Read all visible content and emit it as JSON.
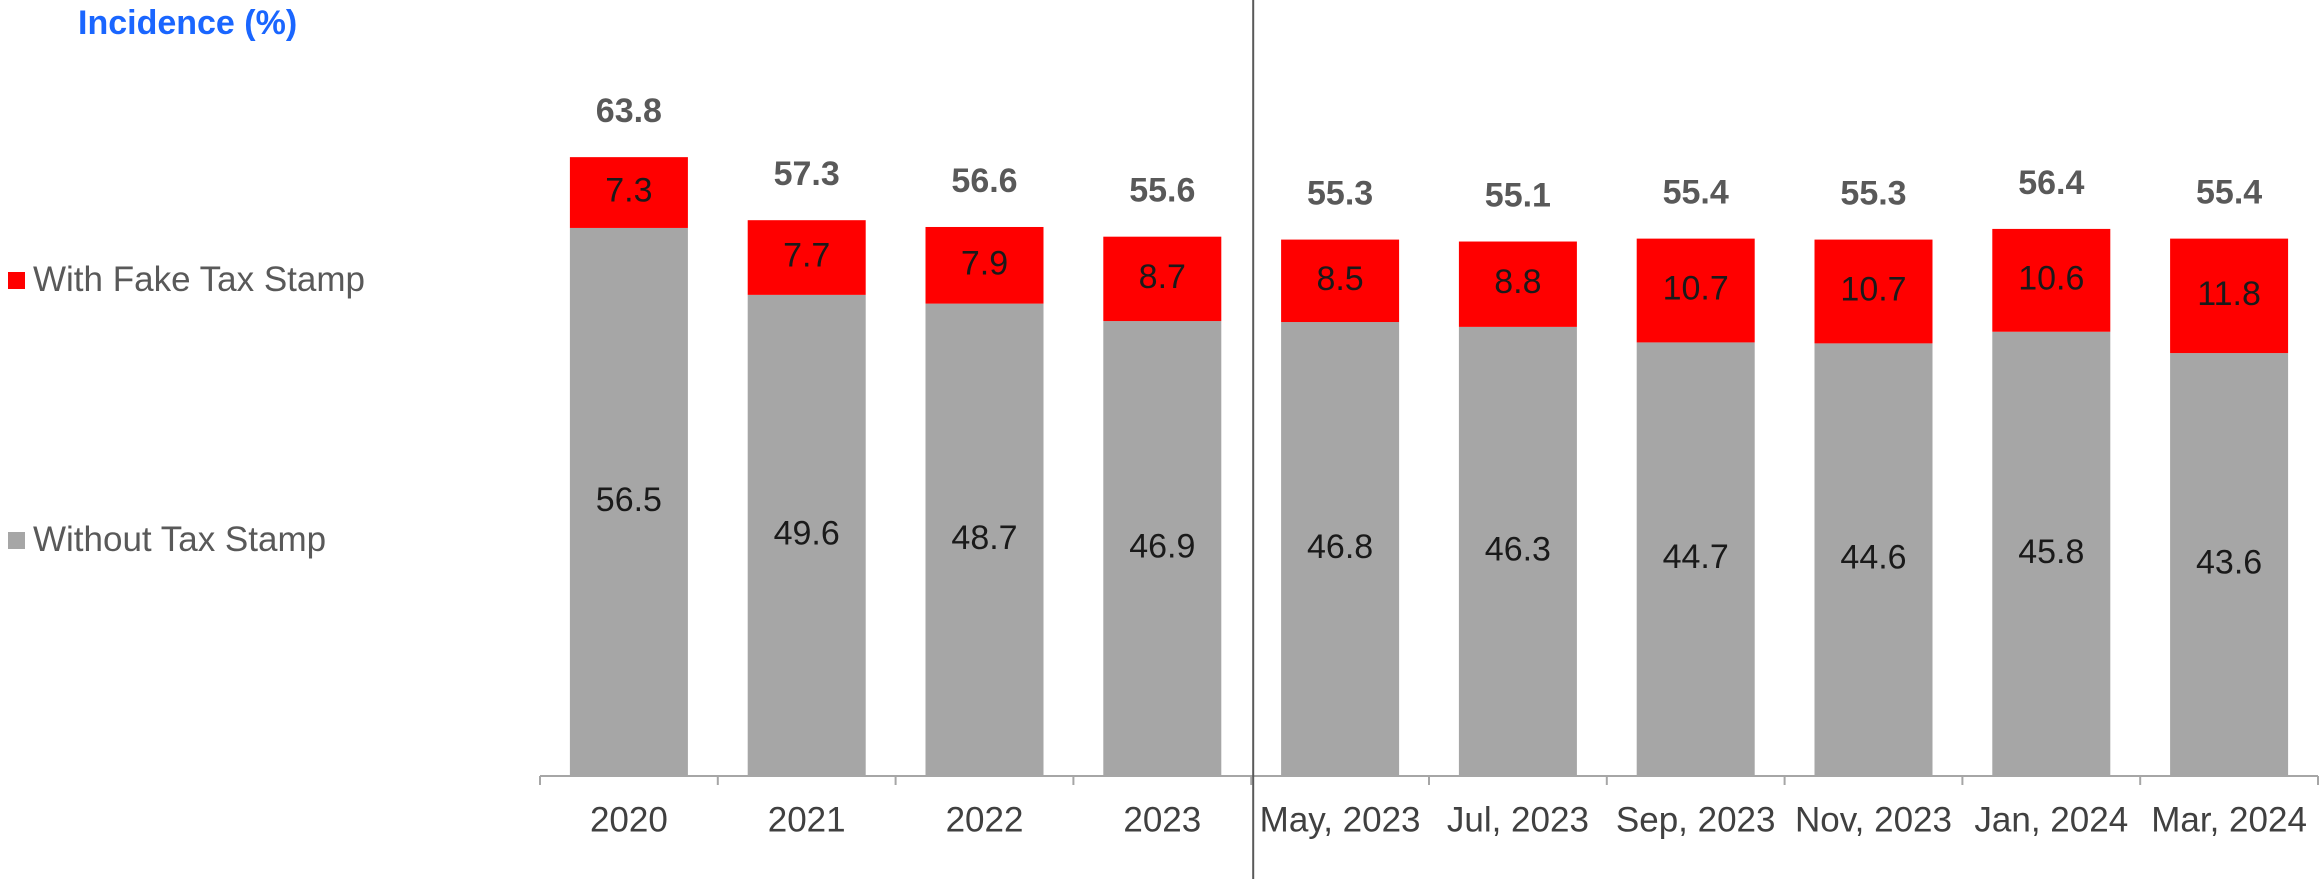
{
  "chart_data": {
    "type": "bar",
    "stacked": true,
    "ylabel": "Incidence (%)",
    "categories": [
      "2020",
      "2021",
      "2022",
      "2023",
      "May, 2023",
      "Jul, 2023",
      "Sep, 2023",
      "Nov, 2023",
      "Jan, 2024",
      "Mar, 2024"
    ],
    "series": [
      {
        "name": "Without Tax Stamp",
        "color": "#a6a6a6",
        "values": [
          56.5,
          49.6,
          48.7,
          46.9,
          46.8,
          46.3,
          44.7,
          44.6,
          45.8,
          43.6
        ]
      },
      {
        "name": "With Fake Tax Stamp",
        "color": "#ff0000",
        "values": [
          7.3,
          7.7,
          7.9,
          8.7,
          8.5,
          8.8,
          10.7,
          10.7,
          10.6,
          11.8
        ]
      }
    ],
    "totals": [
      "63.8",
      "57.3",
      "56.6",
      "55.6",
      "55.3",
      "55.1",
      "55.4",
      "55.3",
      "56.4",
      "55.4"
    ],
    "segment_labels": {
      "without": [
        "56.5",
        "49.6",
        "48.7",
        "46.9",
        "46.8",
        "46.3",
        "44.7",
        "44.6",
        "45.8",
        "43.6"
      ],
      "fake": [
        "7.3",
        "7.7",
        "7.9",
        "8.7",
        "8.5",
        "8.8",
        "10.7",
        "10.7",
        "10.6",
        "11.8"
      ]
    },
    "ylim": [
      0,
      64
    ],
    "grid": false,
    "legend_position": "left",
    "separator_after_category": "2023"
  }
}
